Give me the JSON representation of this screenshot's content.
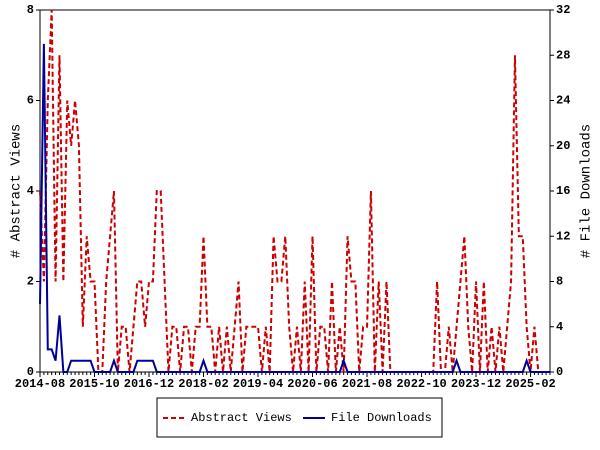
{
  "chart_data": {
    "type": "line",
    "ylabel": "# Abstract Views",
    "y2label": "# File Downloads",
    "ylim": [
      0,
      8
    ],
    "yticks": [
      0,
      2,
      4,
      6,
      8
    ],
    "y2lim": [
      0,
      32
    ],
    "y2ticks": [
      0,
      4,
      8,
      12,
      16,
      20,
      24,
      28,
      32
    ],
    "legend": "bottom",
    "categories": [
      "2014-08",
      null,
      null,
      null,
      null,
      null,
      null,
      null,
      null,
      null,
      null,
      null,
      null,
      null,
      "2015-10",
      null,
      null,
      null,
      null,
      null,
      null,
      null,
      null,
      null,
      null,
      null,
      null,
      null,
      "2016-12",
      null,
      null,
      null,
      null,
      null,
      null,
      null,
      null,
      null,
      null,
      null,
      null,
      null,
      "2018-02",
      null,
      null,
      null,
      null,
      null,
      null,
      null,
      null,
      null,
      null,
      null,
      null,
      null,
      "2019-04",
      null,
      null,
      null,
      null,
      null,
      null,
      null,
      null,
      null,
      null,
      null,
      null,
      null,
      "2020-06",
      null,
      null,
      null,
      null,
      null,
      null,
      null,
      null,
      null,
      null,
      null,
      null,
      null,
      "2021-08",
      null,
      null,
      null,
      null,
      null,
      null,
      null,
      null,
      null,
      null,
      null,
      null,
      null,
      "2022-10",
      null,
      null,
      null,
      null,
      null,
      null,
      null,
      null,
      null,
      null,
      null,
      null,
      null,
      "2023-12",
      null,
      null,
      null,
      null,
      null,
      null,
      null,
      null,
      null,
      null,
      null,
      null,
      null,
      "2025-02",
      null,
      null,
      null,
      null,
      null
    ],
    "series": [
      {
        "name": "Abstract Views",
        "color": "#cc0000",
        "dash": true,
        "values": [
          4,
          2,
          6,
          8,
          2,
          7,
          2,
          6,
          5,
          6,
          5,
          1,
          3,
          2,
          2,
          0,
          0,
          2,
          3,
          4,
          0,
          1,
          1,
          0,
          1,
          2,
          2,
          1,
          2,
          2,
          4,
          4,
          2,
          0,
          1,
          1,
          0,
          1,
          1,
          0,
          1,
          1,
          3,
          1,
          1,
          0,
          1,
          0,
          1,
          0,
          1,
          2,
          0,
          1,
          1,
          1,
          1,
          0,
          1,
          0,
          3,
          2,
          2,
          3,
          1,
          0,
          1,
          0,
          2,
          0,
          3,
          0,
          1,
          1,
          0,
          2,
          0,
          1,
          0,
          3,
          2,
          2,
          0,
          1,
          1,
          4,
          0,
          2,
          0,
          2,
          0,
          0,
          0,
          0,
          0,
          0,
          0,
          0,
          0,
          0,
          0,
          0,
          2,
          0,
          0,
          1,
          0,
          1,
          2,
          3,
          1,
          0,
          2,
          0,
          2,
          0,
          1,
          0,
          1,
          0,
          1,
          2,
          7,
          3,
          3,
          1,
          0,
          1,
          0,
          0,
          0,
          0
        ]
      },
      {
        "name": "File Downloads",
        "color": "#000099",
        "dash": false,
        "axis": "y2",
        "values": [
          6,
          29,
          2,
          2,
          1,
          5,
          0,
          0,
          1,
          1,
          1,
          1,
          1,
          1,
          0,
          0,
          0,
          0,
          0,
          1,
          0,
          0,
          0,
          0,
          0,
          1,
          1,
          1,
          1,
          1,
          0,
          0,
          0,
          0,
          0,
          0,
          0,
          0,
          0,
          0,
          0,
          0,
          1,
          0,
          0,
          0,
          0,
          0,
          0,
          0,
          0,
          0,
          0,
          0,
          0,
          0,
          0,
          0,
          0,
          0,
          0,
          0,
          0,
          0,
          0,
          0,
          0,
          0,
          0,
          0,
          0,
          0,
          0,
          0,
          0,
          0,
          0,
          0,
          1,
          0,
          0,
          0,
          0,
          0,
          0,
          0,
          0,
          0,
          0,
          0,
          0,
          0,
          0,
          0,
          0,
          0,
          0,
          0,
          0,
          0,
          0,
          0,
          0,
          0,
          0,
          0,
          0,
          1,
          0,
          0,
          0,
          0,
          0,
          0,
          0,
          0,
          0,
          0,
          0,
          0,
          0,
          0,
          0,
          0,
          0,
          1,
          0,
          0,
          0,
          0,
          0,
          0
        ]
      }
    ]
  }
}
